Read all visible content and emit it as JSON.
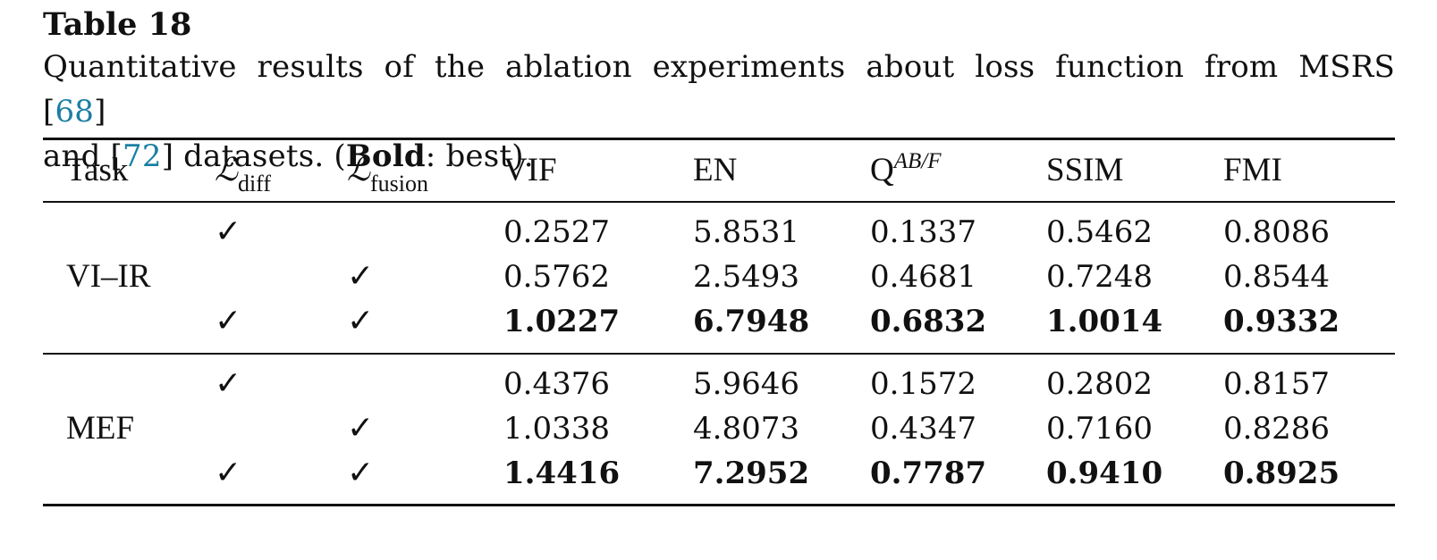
{
  "table": {
    "label": "Table 18",
    "caption_line1_pre": "Quantitative results of the ablation experiments about loss function from MSRS [",
    "caption_cite1": "68",
    "caption_line1_post": "]",
    "caption_line2_pre": "and [",
    "caption_cite2": "72",
    "caption_line2_mid": "] datasets. (",
    "caption_bold": "Bold",
    "caption_line2_post": ": best).",
    "headers": {
      "task": "Task",
      "l_diff_symbol": "ℒ",
      "l_diff_sub": "diff",
      "l_fusion_symbol": "ℒ",
      "l_fusion_sub": "fusion",
      "vif": "VIF",
      "en": "EN",
      "q_base": "Q",
      "q_sup": "AB/F",
      "ssim": "SSIM",
      "fmi": "FMI"
    },
    "check": "✓",
    "groups": [
      {
        "task": "VI–IR",
        "rows": [
          {
            "vif": "0.2527",
            "en": "5.8531",
            "q": "0.1337",
            "ssim": "0.5462",
            "fmi": "0.8086"
          },
          {
            "vif": "0.5762",
            "en": "2.5493",
            "q": "0.4681",
            "ssim": "0.7248",
            "fmi": "0.8544"
          },
          {
            "vif": "1.0227",
            "en": "6.7948",
            "q": "0.6832",
            "ssim": "1.0014",
            "fmi": "0.9332"
          }
        ]
      },
      {
        "task": "MEF",
        "rows": [
          {
            "vif": "0.4376",
            "en": "5.9646",
            "q": "0.1572",
            "ssim": "0.2802",
            "fmi": "0.8157"
          },
          {
            "vif": "1.0338",
            "en": "4.8073",
            "q": "0.4347",
            "ssim": "0.7160",
            "fmi": "0.8286"
          },
          {
            "vif": "1.4416",
            "en": "7.2952",
            "q": "0.7787",
            "ssim": "0.9410",
            "fmi": "0.8925"
          }
        ]
      }
    ]
  }
}
